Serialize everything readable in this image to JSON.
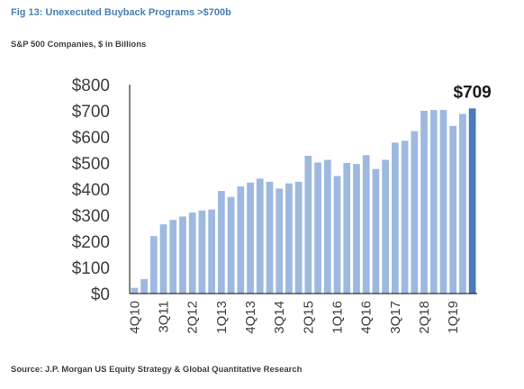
{
  "header": {
    "title": "Fig 13: Unexecuted Buyback Programs >$700b",
    "subtitle": "S&P 500 Companies, $ in Billions"
  },
  "footer": {
    "source": "Source: J.P. Morgan US Equity Strategy & Global Quantitative Research"
  },
  "chart_data": {
    "type": "bar",
    "categories": [
      "4Q10",
      "1Q11",
      "2Q11",
      "3Q11",
      "4Q11",
      "1Q12",
      "2Q12",
      "3Q12",
      "4Q12",
      "1Q13",
      "2Q13",
      "3Q13",
      "4Q13",
      "1Q14",
      "2Q14",
      "3Q14",
      "4Q14",
      "1Q15",
      "2Q15",
      "3Q15",
      "4Q15",
      "1Q16",
      "2Q16",
      "3Q16",
      "4Q16",
      "1Q17",
      "2Q17",
      "3Q17",
      "4Q17",
      "1Q18",
      "2Q18",
      "3Q18",
      "4Q18",
      "1Q19",
      "2Q19",
      "3Q19"
    ],
    "tick_labels": [
      "4Q10",
      "",
      "",
      "3Q11",
      "",
      "",
      "2Q12",
      "",
      "",
      "1Q13",
      "",
      "",
      "4Q13",
      "",
      "",
      "3Q14",
      "",
      "",
      "2Q15",
      "",
      "",
      "1Q16",
      "",
      "",
      "4Q16",
      "",
      "",
      "3Q17",
      "",
      "",
      "2Q18",
      "",
      "",
      "1Q19",
      "",
      ""
    ],
    "values": [
      22,
      55,
      220,
      265,
      282,
      295,
      310,
      318,
      322,
      393,
      370,
      410,
      425,
      440,
      428,
      402,
      422,
      428,
      528,
      502,
      512,
      450,
      500,
      496,
      530,
      477,
      512,
      578,
      585,
      622,
      700,
      703,
      703,
      642,
      688,
      709
    ],
    "ylim": [
      0,
      800
    ],
    "yticks": [
      0,
      100,
      200,
      300,
      400,
      500,
      600,
      700,
      800
    ],
    "ytick_labels": [
      "$0",
      "$100",
      "$200",
      "$300",
      "$400",
      "$500",
      "$600",
      "$700",
      "$800"
    ],
    "callout": "$709",
    "grid": false,
    "colors": {
      "bar": "#9db9df",
      "highlight": "#4a7ab8"
    }
  }
}
